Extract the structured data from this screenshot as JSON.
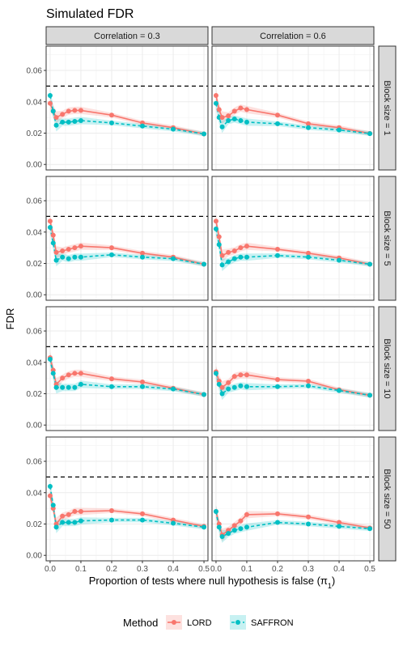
{
  "chart_data": {
    "type": "line",
    "title": "Simulated FDR",
    "xlabel": "Proportion of tests where null hypothesis is false (π",
    "xlabel_sub": "1",
    "xlabel_close": ")",
    "ylabel": "FDR",
    "x_ticks": [
      "0.0",
      "0.1",
      "0.2",
      "0.3",
      "0.4",
      "0.5"
    ],
    "y_ticks": [
      "0.00",
      "0.02",
      "0.04",
      "0.06"
    ],
    "xlim": [
      -0.013,
      0.513
    ],
    "ylim": [
      -0.0035,
      0.0755
    ],
    "reference_line": 0.05,
    "grid": true,
    "legend": {
      "title": "Method",
      "position": "bottom",
      "entries": [
        {
          "name": "LORD",
          "color": "#F8766D",
          "linetype": "solid"
        },
        {
          "name": "SAFFRON",
          "color": "#00BFC4",
          "linetype": "dashed"
        }
      ]
    },
    "column_labels": [
      "Correlation =  0.3",
      "Correlation =  0.6"
    ],
    "row_labels": [
      "Block size = 1",
      "Block size = 5",
      "Block size = 10",
      "Block size = 50"
    ],
    "x": [
      0.0,
      0.01,
      0.02,
      0.04,
      0.06,
      0.08,
      0.1,
      0.2,
      0.3,
      0.4,
      0.5
    ],
    "panels": [
      {
        "row": 0,
        "col": 0,
        "LORD": [
          0.039,
          0.034,
          0.03,
          0.032,
          0.034,
          0.0345,
          0.0345,
          0.0315,
          0.0265,
          0.0235,
          0.0195
        ],
        "SAFFRON": [
          0.044,
          0.034,
          0.025,
          0.027,
          0.027,
          0.0275,
          0.028,
          0.0265,
          0.0245,
          0.0225,
          0.0195
        ]
      },
      {
        "row": 0,
        "col": 1,
        "LORD": [
          0.044,
          0.035,
          0.03,
          0.031,
          0.034,
          0.036,
          0.035,
          0.0315,
          0.026,
          0.0235,
          0.0198
        ],
        "SAFFRON": [
          0.039,
          0.03,
          0.024,
          0.028,
          0.029,
          0.028,
          0.027,
          0.026,
          0.0235,
          0.022,
          0.0197
        ]
      },
      {
        "row": 1,
        "col": 0,
        "LORD": [
          0.047,
          0.038,
          0.027,
          0.028,
          0.029,
          0.03,
          0.031,
          0.03,
          0.0265,
          0.024,
          0.0195
        ],
        "SAFFRON": [
          0.043,
          0.033,
          0.022,
          0.024,
          0.023,
          0.024,
          0.024,
          0.0255,
          0.024,
          0.023,
          0.0195
        ]
      },
      {
        "row": 1,
        "col": 1,
        "LORD": [
          0.047,
          0.037,
          0.025,
          0.027,
          0.028,
          0.03,
          0.031,
          0.029,
          0.0265,
          0.0235,
          0.0195
        ],
        "SAFFRON": [
          0.042,
          0.032,
          0.019,
          0.021,
          0.023,
          0.024,
          0.024,
          0.025,
          0.024,
          0.022,
          0.0195
        ]
      },
      {
        "row": 2,
        "col": 0,
        "LORD": [
          0.043,
          0.035,
          0.026,
          0.03,
          0.032,
          0.033,
          0.033,
          0.0295,
          0.0275,
          0.0235,
          0.0195
        ],
        "SAFFRON": [
          0.042,
          0.033,
          0.024,
          0.024,
          0.024,
          0.024,
          0.026,
          0.0245,
          0.0245,
          0.023,
          0.0195
        ]
      },
      {
        "row": 2,
        "col": 1,
        "LORD": [
          0.034,
          0.028,
          0.024,
          0.027,
          0.031,
          0.032,
          0.032,
          0.029,
          0.028,
          0.0225,
          0.019
        ],
        "SAFFRON": [
          0.033,
          0.026,
          0.02,
          0.023,
          0.024,
          0.025,
          0.0245,
          0.0245,
          0.025,
          0.022,
          0.019
        ]
      },
      {
        "row": 3,
        "col": 0,
        "LORD": [
          0.038,
          0.03,
          0.02,
          0.025,
          0.026,
          0.028,
          0.028,
          0.0285,
          0.0265,
          0.0225,
          0.0185
        ],
        "SAFFRON": [
          0.044,
          0.032,
          0.018,
          0.021,
          0.021,
          0.021,
          0.022,
          0.0225,
          0.0225,
          0.0205,
          0.018
        ]
      },
      {
        "row": 3,
        "col": 1,
        "LORD": [
          0.028,
          0.02,
          0.013,
          0.016,
          0.019,
          0.022,
          0.026,
          0.0265,
          0.0245,
          0.021,
          0.0175
        ],
        "SAFFRON": [
          0.028,
          0.018,
          0.012,
          0.014,
          0.016,
          0.017,
          0.018,
          0.021,
          0.02,
          0.0185,
          0.017
        ]
      }
    ]
  }
}
